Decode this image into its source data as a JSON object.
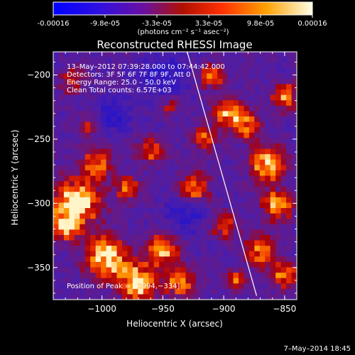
{
  "colorbar": {
    "ticks": [
      "-0.00016",
      "-9.8e-05",
      "-3.3e-05",
      "3.3e-05",
      "9.8e-05",
      "0.00016"
    ],
    "unit": "(photons cm⁻² s⁻¹ asec⁻²)",
    "colors": [
      "#0000ff",
      "#5a00cc",
      "#8a2070",
      "#c00000",
      "#ff5000",
      "#ffb000",
      "#ffffe0"
    ]
  },
  "chart_data": {
    "type": "heatmap",
    "title": "Reconstructed RHESSI Image",
    "xlabel": "Heliocentric X (arcsec)",
    "ylabel": "Heliocentric Y (arcsec)",
    "xlim": [
      -1040,
      -840
    ],
    "ylim": [
      -375,
      -182
    ],
    "x_ticks": [
      -1000,
      -950,
      -900,
      -850
    ],
    "y_ticks": [
      -200,
      -250,
      -300,
      -350
    ],
    "x_tick_labels": [
      "−1000",
      "−950",
      "−900",
      "−850"
    ],
    "y_tick_labels": [
      "−200",
      "−250",
      "−300",
      "−350"
    ],
    "limb_line": [
      [
        -930,
        -182
      ],
      [
        -873,
        -372
      ]
    ],
    "info": {
      "time": "13–May–2012 07:39:28.000 to 07:44:42.000",
      "detectors": "Detectors: 3F 5F 6F 7F 8F 9F, Att 0",
      "energy": "Energy Range: 25.0 – 50.0 keV",
      "clean": "Clean     Total counts: 6.57E+03"
    },
    "peak": "Position of Peak = [−994,−334]"
  },
  "footer": {
    "date": "7–May–2014 18:45"
  }
}
